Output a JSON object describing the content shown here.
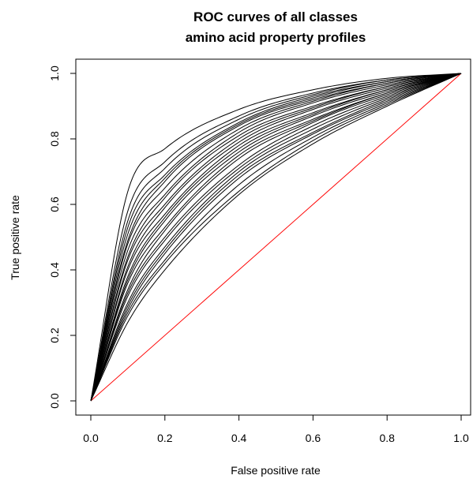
{
  "chart_data": {
    "type": "line",
    "title": [
      "ROC curves of all classes",
      "amino acid property profiles"
    ],
    "xlabel": "False positive rate",
    "ylabel": "True positive rate",
    "xlim": [
      0,
      1
    ],
    "ylim": [
      0,
      1
    ],
    "x_ticks": [
      "0.0",
      "0.2",
      "0.4",
      "0.6",
      "0.8",
      "1.0"
    ],
    "y_ticks": [
      "0.0",
      "0.2",
      "0.4",
      "0.6",
      "0.8",
      "1.0"
    ],
    "grid": false,
    "legend": "none",
    "curve_color": "#000000",
    "diagonal_color": "#ff0000",
    "diagonal": {
      "x": [
        0,
        1
      ],
      "y": [
        0,
        1
      ]
    },
    "series": [
      {
        "x": [
          0,
          0.1,
          0.2,
          0.4,
          0.6,
          0.8,
          1
        ],
        "y": [
          0,
          0.64,
          0.77,
          0.89,
          0.95,
          0.985,
          1
        ]
      },
      {
        "x": [
          0,
          0.1,
          0.2,
          0.4,
          0.6,
          0.8,
          1
        ],
        "y": [
          0,
          0.58,
          0.73,
          0.87,
          0.94,
          0.98,
          1
        ]
      },
      {
        "x": [
          0,
          0.1,
          0.2,
          0.4,
          0.6,
          0.8,
          1
        ],
        "y": [
          0,
          0.55,
          0.71,
          0.86,
          0.935,
          0.98,
          1
        ]
      },
      {
        "x": [
          0,
          0.1,
          0.2,
          0.4,
          0.6,
          0.8,
          1
        ],
        "y": [
          0,
          0.53,
          0.69,
          0.85,
          0.93,
          0.975,
          1
        ]
      },
      {
        "x": [
          0,
          0.1,
          0.2,
          0.4,
          0.6,
          0.8,
          1
        ],
        "y": [
          0,
          0.51,
          0.68,
          0.845,
          0.925,
          0.975,
          1
        ]
      },
      {
        "x": [
          0,
          0.1,
          0.2,
          0.4,
          0.6,
          0.8,
          1
        ],
        "y": [
          0,
          0.49,
          0.67,
          0.84,
          0.92,
          0.97,
          1
        ]
      },
      {
        "x": [
          0,
          0.1,
          0.2,
          0.4,
          0.6,
          0.8,
          1
        ],
        "y": [
          0,
          0.48,
          0.65,
          0.83,
          0.915,
          0.97,
          1
        ]
      },
      {
        "x": [
          0,
          0.1,
          0.2,
          0.4,
          0.6,
          0.8,
          1
        ],
        "y": [
          0,
          0.46,
          0.63,
          0.82,
          0.91,
          0.965,
          1
        ]
      },
      {
        "x": [
          0,
          0.1,
          0.2,
          0.4,
          0.6,
          0.8,
          1
        ],
        "y": [
          0,
          0.44,
          0.62,
          0.81,
          0.9,
          0.96,
          1
        ]
      },
      {
        "x": [
          0,
          0.1,
          0.2,
          0.4,
          0.6,
          0.8,
          1
        ],
        "y": [
          0,
          0.43,
          0.6,
          0.8,
          0.895,
          0.96,
          1
        ]
      },
      {
        "x": [
          0,
          0.1,
          0.2,
          0.4,
          0.6,
          0.8,
          1
        ],
        "y": [
          0,
          0.41,
          0.59,
          0.79,
          0.89,
          0.955,
          1
        ]
      },
      {
        "x": [
          0,
          0.1,
          0.2,
          0.4,
          0.6,
          0.8,
          1
        ],
        "y": [
          0,
          0.4,
          0.57,
          0.78,
          0.88,
          0.95,
          1
        ]
      },
      {
        "x": [
          0,
          0.1,
          0.2,
          0.4,
          0.6,
          0.8,
          1
        ],
        "y": [
          0,
          0.38,
          0.56,
          0.77,
          0.875,
          0.95,
          1
        ]
      },
      {
        "x": [
          0,
          0.1,
          0.2,
          0.4,
          0.6,
          0.8,
          1
        ],
        "y": [
          0,
          0.37,
          0.55,
          0.76,
          0.87,
          0.945,
          1
        ]
      },
      {
        "x": [
          0,
          0.1,
          0.2,
          0.4,
          0.6,
          0.8,
          1
        ],
        "y": [
          0,
          0.36,
          0.53,
          0.75,
          0.86,
          0.94,
          1
        ]
      },
      {
        "x": [
          0,
          0.1,
          0.2,
          0.4,
          0.6,
          0.8,
          1
        ],
        "y": [
          0,
          0.34,
          0.52,
          0.74,
          0.855,
          0.94,
          1
        ]
      },
      {
        "x": [
          0,
          0.1,
          0.2,
          0.4,
          0.6,
          0.8,
          1
        ],
        "y": [
          0,
          0.33,
          0.5,
          0.72,
          0.85,
          0.935,
          1
        ]
      },
      {
        "x": [
          0,
          0.1,
          0.2,
          0.4,
          0.6,
          0.8,
          1
        ],
        "y": [
          0,
          0.32,
          0.49,
          0.71,
          0.84,
          0.93,
          1
        ]
      },
      {
        "x": [
          0,
          0.1,
          0.2,
          0.4,
          0.6,
          0.8,
          1
        ],
        "y": [
          0,
          0.3,
          0.47,
          0.7,
          0.83,
          0.925,
          1
        ]
      },
      {
        "x": [
          0,
          0.1,
          0.2,
          0.4,
          0.6,
          0.8,
          1
        ],
        "y": [
          0,
          0.29,
          0.46,
          0.69,
          0.82,
          0.92,
          1
        ]
      },
      {
        "x": [
          0,
          0.1,
          0.2,
          0.4,
          0.6,
          0.8,
          1
        ],
        "y": [
          0,
          0.28,
          0.45,
          0.68,
          0.815,
          0.915,
          1
        ]
      },
      {
        "x": [
          0,
          0.1,
          0.2,
          0.4,
          0.6,
          0.8,
          1
        ],
        "y": [
          0,
          0.27,
          0.43,
          0.66,
          0.805,
          0.91,
          1
        ]
      },
      {
        "x": [
          0,
          0.1,
          0.2,
          0.4,
          0.6,
          0.8,
          1
        ],
        "y": [
          0,
          0.26,
          0.42,
          0.64,
          0.795,
          0.905,
          1
        ]
      },
      {
        "x": [
          0,
          0.1,
          0.2,
          0.4,
          0.6,
          0.8,
          1
        ],
        "y": [
          0,
          0.24,
          0.4,
          0.63,
          0.785,
          0.9,
          1
        ]
      }
    ]
  }
}
